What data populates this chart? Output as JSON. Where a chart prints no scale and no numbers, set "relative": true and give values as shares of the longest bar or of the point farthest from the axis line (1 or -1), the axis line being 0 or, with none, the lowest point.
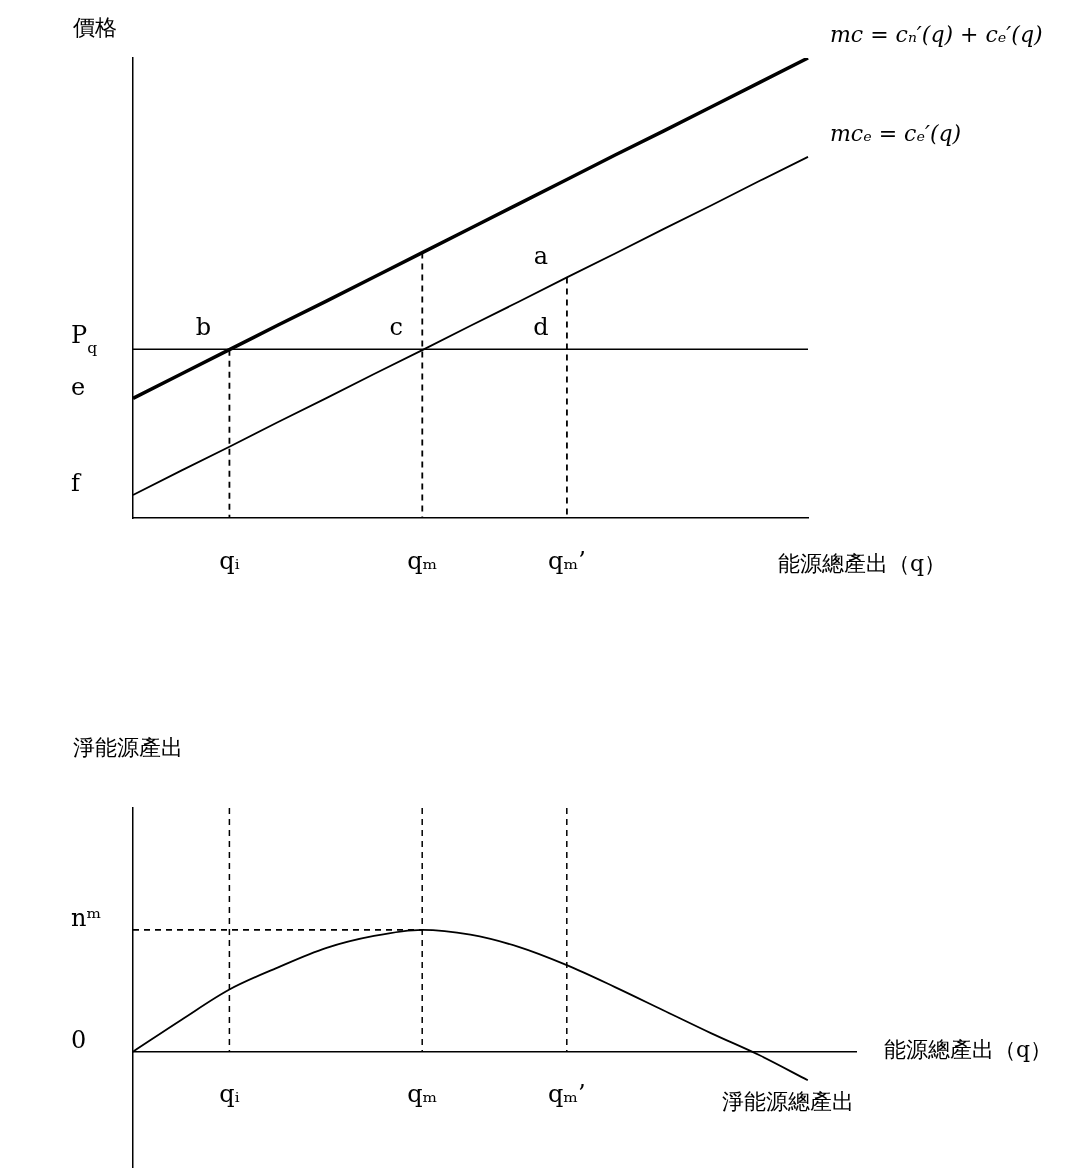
{
  "chart_data": [
    {
      "type": "line",
      "ylabel": "價格",
      "xlabel": "能源總產出（q）",
      "relative": true,
      "categories": [
        null,
        null,
        "qᵢ",
        null,
        null,
        null,
        "qₘ",
        null,
        null,
        "qₘ’",
        null,
        null,
        null,
        null,
        null
      ],
      "series": [
        {
          "name": "mc = cₙ′(q) + cₑ′(q)",
          "color": "#000000",
          "values": [
            0.26,
            0.313,
            0.366,
            0.419,
            0.471,
            0.524,
            0.577,
            0.63,
            0.683,
            0.736,
            0.789,
            0.841,
            0.894,
            0.947,
            1.0
          ]
        },
        {
          "name": "mcₑ = cₑ′(q)",
          "color": "#000000",
          "values": [
            0.05,
            0.103,
            0.155,
            0.208,
            0.26,
            0.313,
            0.365,
            0.418,
            0.47,
            0.523,
            0.575,
            0.628,
            0.68,
            0.733,
            0.785
          ]
        },
        {
          "color": "#000000",
          "line_style": "dashed",
          "x": [
            "qᵢ",
            "qᵢ"
          ],
          "values": [
            0.366,
            0
          ]
        },
        {
          "color": "#000000",
          "line_style": "dashed",
          "x": [
            "qₘ",
            "qₘ"
          ],
          "values": [
            0.577,
            0
          ]
        },
        {
          "color": "#000000",
          "line_style": "dashed",
          "x": [
            "qₘ’",
            "qₘ’"
          ],
          "values": [
            0.523,
            0
          ]
        }
      ],
      "ref_lines": [
        {
          "axis": "y",
          "value": 0.367,
          "label": "P$_{q}$",
          "color": "#000000",
          "line_style": "solid"
        }
      ],
      "annotations": [
        "e",
        "f",
        {
          "text": "a",
          "x": "qₘ’",
          "y": 0.523
        },
        {
          "text": "b",
          "x": "qᵢ",
          "y": 0.367
        },
        {
          "text": "c",
          "x": "qₘ",
          "y": 0.367
        },
        {
          "text": "d",
          "x": "qₘ’",
          "y": 0.367
        }
      ]
    },
    {
      "type": "line",
      "ylabel": "淨能源產出",
      "xlabel": "能源總產出（q）",
      "relative": true,
      "categories": [
        null,
        null,
        "qᵢ",
        null,
        null,
        null,
        "qₘ",
        null,
        null,
        "qₘ’",
        null,
        null,
        null,
        null,
        null,
        null
      ],
      "series": [
        {
          "name": "淨能源總產出",
          "color": "#000000",
          "values": [
            0,
            0.26,
            0.51,
            0.69,
            0.85,
            0.95,
            1.0,
            0.96,
            0.86,
            0.71,
            0.53,
            0.34,
            0.15,
            -0.03,
            -0.235,
            null
          ]
        },
        {
          "color": "#000000",
          "line_style": "dashed",
          "values": [
            1.0,
            1.0,
            1.0,
            1.0,
            1.0,
            1.0,
            1.0,
            null,
            null,
            null,
            null,
            null,
            null,
            null,
            null,
            null
          ]
        }
      ],
      "ref_lines": [
        {
          "axis": "x",
          "value": "qᵢ",
          "color": "#000000",
          "line_style": "dashed"
        },
        {
          "axis": "x",
          "value": "qₘ",
          "color": "#000000",
          "line_style": "dashed"
        },
        {
          "axis": "x",
          "value": "qₘ’",
          "color": "#000000",
          "line_style": "dashed"
        }
      ],
      "annotations": [
        "0",
        "nᵐ"
      ]
    }
  ]
}
